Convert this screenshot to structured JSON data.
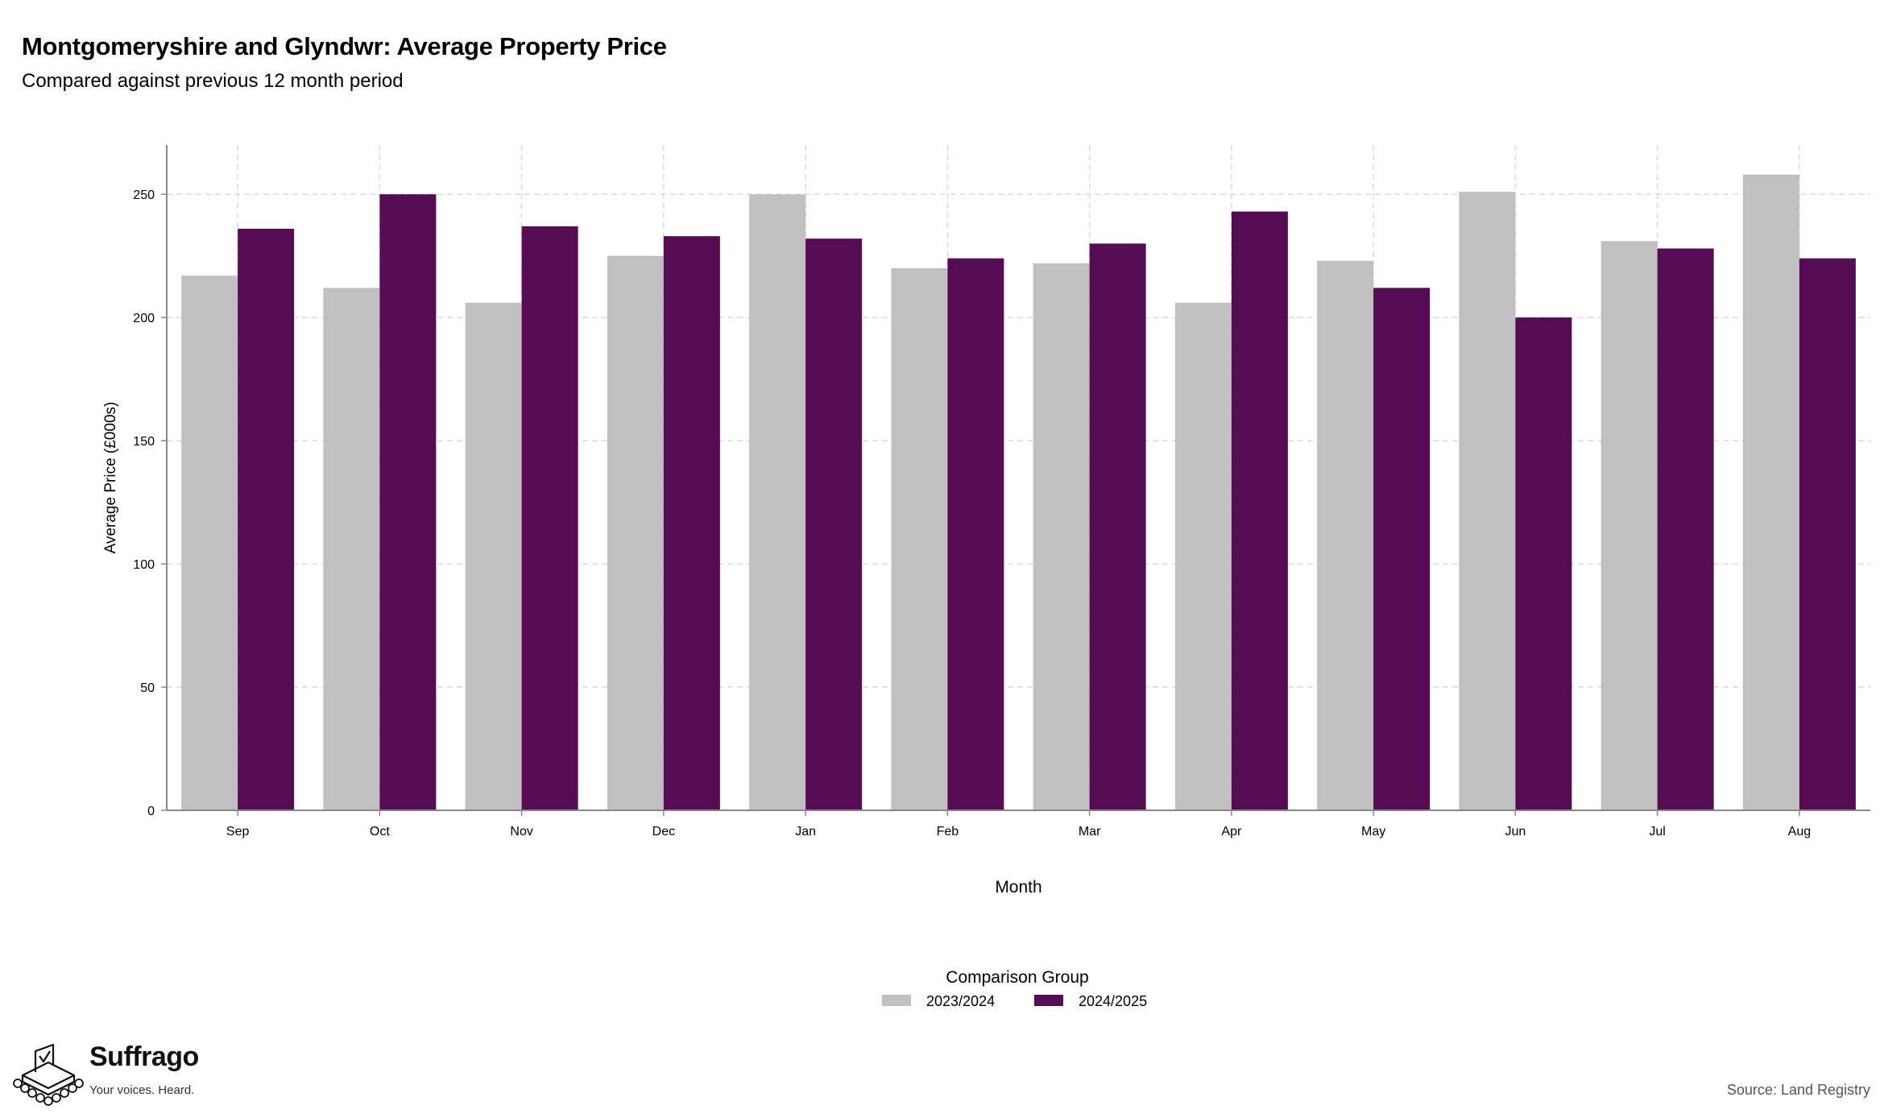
{
  "header": {
    "title": "Montgomeryshire and Glyndwr: Average Property Price",
    "subtitle": "Compared against previous 12 month period"
  },
  "footer": {
    "source": "Source: Land Registry",
    "brand_name": "Suffrago",
    "brand_tagline": "Your voices. Heard.",
    "brand_icon": "ballot-box-icon"
  },
  "chart_data": {
    "type": "bar",
    "title": "Montgomeryshire and Glyndwr: Average Property Price",
    "subtitle": "Compared against previous 12 month period",
    "xlabel": "Month",
    "ylabel": "Average Price (£000s)",
    "categories": [
      "Sep",
      "Oct",
      "Nov",
      "Dec",
      "Jan",
      "Feb",
      "Mar",
      "Apr",
      "May",
      "Jun",
      "Jul",
      "Aug"
    ],
    "series": [
      {
        "name": "2023/2024",
        "color": "#c0c0c0",
        "values": [
          217,
          212,
          206,
          225,
          250,
          220,
          222,
          206,
          223,
          251,
          231,
          258
        ]
      },
      {
        "name": "2024/2025",
        "color": "#560c52",
        "values": [
          236,
          250,
          237,
          233,
          232,
          224,
          230,
          243,
          212,
          200,
          228,
          224
        ]
      }
    ],
    "ylim": [
      0,
      270
    ],
    "yticks": [
      0,
      50,
      100,
      150,
      200,
      250
    ],
    "grid": true,
    "legend": {
      "title": "Comparison Group",
      "position": "bottom-center"
    }
  }
}
